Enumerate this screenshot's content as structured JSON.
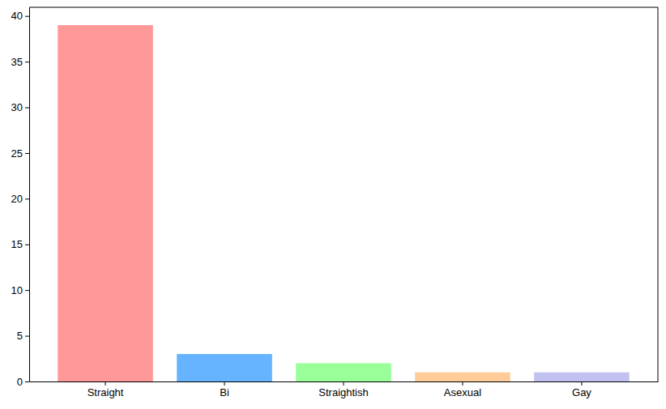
{
  "chart_data": {
    "type": "bar",
    "categories": [
      "Straight",
      "Bi",
      "Straightish",
      "Asexual",
      "Gay"
    ],
    "values": [
      39,
      3,
      2,
      1,
      1
    ],
    "colors": [
      "#ff9999",
      "#66b3ff",
      "#99ff99",
      "#ffcc99",
      "#c2c2f0"
    ],
    "ylim": [
      0,
      40.95
    ],
    "yticks": [
      0,
      5,
      10,
      15,
      20,
      25,
      30,
      35,
      40
    ],
    "grid": false
  }
}
